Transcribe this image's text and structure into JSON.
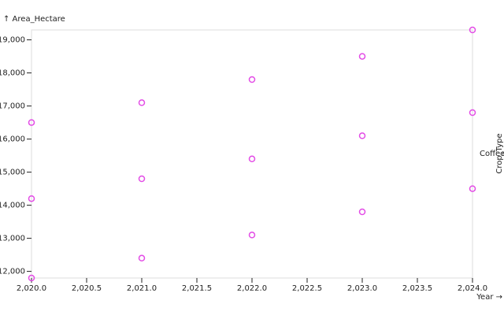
{
  "chart_data": {
    "type": "scatter",
    "x_label": "Year →",
    "y_label": "↑ Area_Hectare",
    "x": [
      2020,
      2020,
      2020,
      2021,
      2021,
      2021,
      2022,
      2022,
      2022,
      2023,
      2023,
      2023,
      2024,
      2024,
      2024
    ],
    "series": [
      {
        "name": "Coffee",
        "color": "#e34ce6",
        "values": [
          16500,
          14200,
          11800,
          17100,
          14800,
          12400,
          17800,
          15400,
          13100,
          18500,
          16100,
          13800,
          19300,
          16800,
          14500
        ]
      }
    ],
    "legend_title": "Crop_Type",
    "xlim": [
      2020,
      2024
    ],
    "ylim": [
      11800,
      19300
    ],
    "xticks": [
      {
        "value": 2020,
        "label": "2,020.0"
      },
      {
        "value": 2020.5,
        "label": "2,020.5"
      },
      {
        "value": 2021,
        "label": "2,021.0"
      },
      {
        "value": 2021.5,
        "label": "2,021.5"
      },
      {
        "value": 2022,
        "label": "2,022.0"
      },
      {
        "value": 2022.5,
        "label": "2,022.5"
      },
      {
        "value": 2023,
        "label": "2,023.0"
      },
      {
        "value": 2023.5,
        "label": "2,023.5"
      },
      {
        "value": 2024,
        "label": "2,024.0"
      }
    ],
    "yticks": [
      {
        "value": 12000,
        "label": "12,000"
      },
      {
        "value": 13000,
        "label": "13,000"
      },
      {
        "value": 14000,
        "label": "14,000"
      },
      {
        "value": 15000,
        "label": "15,000"
      },
      {
        "value": 16000,
        "label": "16,000"
      },
      {
        "value": 17000,
        "label": "17,000"
      },
      {
        "value": 18000,
        "label": "18,000"
      },
      {
        "value": 19000,
        "label": "19,000"
      }
    ]
  }
}
